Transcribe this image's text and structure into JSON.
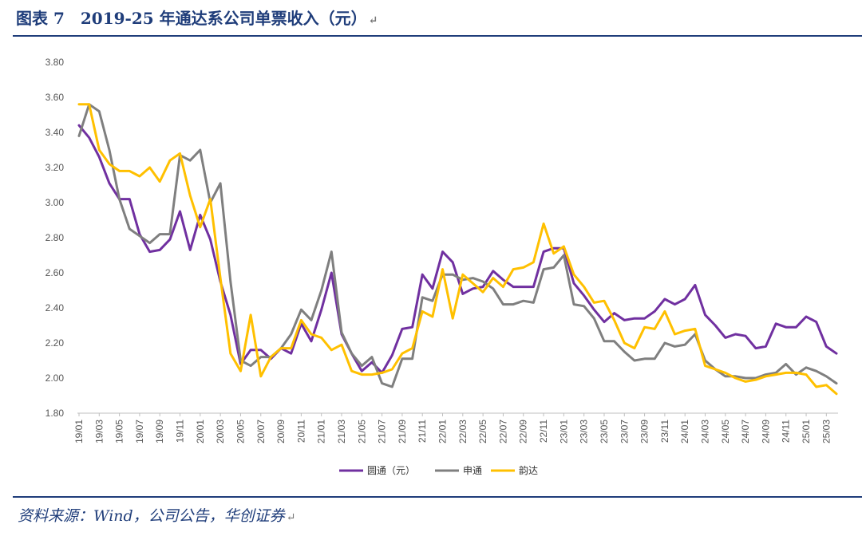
{
  "figure": {
    "title": "图表 7　2019-25 年通达系公司单票收入（元）",
    "return_mark": "↵",
    "source": "资料来源：Wind，公司公告，华创证券"
  },
  "chart_data": {
    "type": "line",
    "title": "",
    "xlabel": "",
    "ylabel": "",
    "ylim": [
      1.8,
      3.8
    ],
    "yticks": [
      "3.80",
      "3.60",
      "3.40",
      "3.20",
      "3.00",
      "2.80",
      "2.60",
      "2.40",
      "2.20",
      "2.00",
      "1.80"
    ],
    "x_tick_labels": [
      "19/01",
      "19/03",
      "19/05",
      "19/07",
      "19/09",
      "19/11",
      "20/01",
      "20/03",
      "20/05",
      "20/07",
      "20/09",
      "20/11",
      "21/01",
      "21/03",
      "21/05",
      "21/07",
      "21/09",
      "21/11",
      "22/01",
      "22/03",
      "22/05",
      "22/07",
      "22/09",
      "22/11",
      "23/01",
      "23/03",
      "23/05",
      "23/07",
      "23/09",
      "23/11",
      "24/01",
      "24/03",
      "24/05",
      "24/07",
      "24/09",
      "24/11",
      "25/01",
      "25/03"
    ],
    "x_start": "2019-01",
    "x_end": "2025-04",
    "legend_position": "bottom",
    "grid": false,
    "series": [
      {
        "name": "圆通（元）",
        "color": "#7030a0",
        "values": [
          3.44,
          3.37,
          3.26,
          3.11,
          3.02,
          3.02,
          2.82,
          2.72,
          2.73,
          2.79,
          2.95,
          2.73,
          2.93,
          2.79,
          2.55,
          2.36,
          2.08,
          2.16,
          2.16,
          2.11,
          2.17,
          2.14,
          2.31,
          2.21,
          2.39,
          2.6,
          2.25,
          2.14,
          2.04,
          2.09,
          2.03,
          2.13,
          2.28,
          2.29,
          2.59,
          2.51,
          2.72,
          2.66,
          2.48,
          2.51,
          2.52,
          2.61,
          2.56,
          2.52,
          2.52,
          2.52,
          2.72,
          2.74,
          2.74,
          2.54,
          2.47,
          2.39,
          2.32,
          2.37,
          2.33,
          2.34,
          2.34,
          2.38,
          2.45,
          2.42,
          2.45,
          2.53,
          2.36,
          2.3,
          2.23,
          2.25,
          2.24,
          2.17,
          2.18,
          2.31,
          2.29,
          2.29,
          2.35,
          2.32,
          2.18,
          2.14
        ]
      },
      {
        "name": "申通",
        "color": "#7f7f7f",
        "values": [
          3.38,
          3.56,
          3.52,
          3.3,
          3.02,
          2.85,
          2.81,
          2.77,
          2.82,
          2.82,
          3.27,
          3.24,
          3.3,
          3.0,
          3.11,
          2.55,
          2.1,
          2.07,
          2.12,
          2.12,
          2.17,
          2.25,
          2.39,
          2.33,
          2.5,
          2.72,
          2.26,
          2.14,
          2.07,
          2.12,
          1.97,
          1.95,
          2.11,
          2.11,
          2.46,
          2.44,
          2.59,
          2.59,
          2.56,
          2.57,
          2.55,
          2.51,
          2.42,
          2.42,
          2.44,
          2.43,
          2.62,
          2.63,
          2.7,
          2.42,
          2.41,
          2.34,
          2.21,
          2.21,
          2.15,
          2.1,
          2.11,
          2.11,
          2.2,
          2.18,
          2.19,
          2.25,
          2.1,
          2.05,
          2.01,
          2.01,
          2.0,
          2.0,
          2.02,
          2.03,
          2.08,
          2.02,
          2.06,
          2.04,
          2.01,
          1.97
        ]
      },
      {
        "name": "韵达",
        "color": "#ffc000",
        "values": [
          3.56,
          3.56,
          3.3,
          3.22,
          3.18,
          3.18,
          3.15,
          3.2,
          3.12,
          3.24,
          3.28,
          3.04,
          2.86,
          3.02,
          2.57,
          2.14,
          2.04,
          2.36,
          2.01,
          2.12,
          2.17,
          2.17,
          2.33,
          2.25,
          2.23,
          2.16,
          2.19,
          2.04,
          2.02,
          2.02,
          2.03,
          2.05,
          2.14,
          2.17,
          2.38,
          2.35,
          2.62,
          2.34,
          2.59,
          2.54,
          2.49,
          2.57,
          2.52,
          2.62,
          2.63,
          2.66,
          2.88,
          2.71,
          2.75,
          2.59,
          2.52,
          2.43,
          2.44,
          2.33,
          2.2,
          2.17,
          2.29,
          2.28,
          2.38,
          2.25,
          2.27,
          2.28,
          2.07,
          2.05,
          2.03,
          2.0,
          1.98,
          1.99,
          2.01,
          2.02,
          2.03,
          2.03,
          2.02,
          1.95,
          1.96,
          1.91
        ]
      }
    ]
  }
}
